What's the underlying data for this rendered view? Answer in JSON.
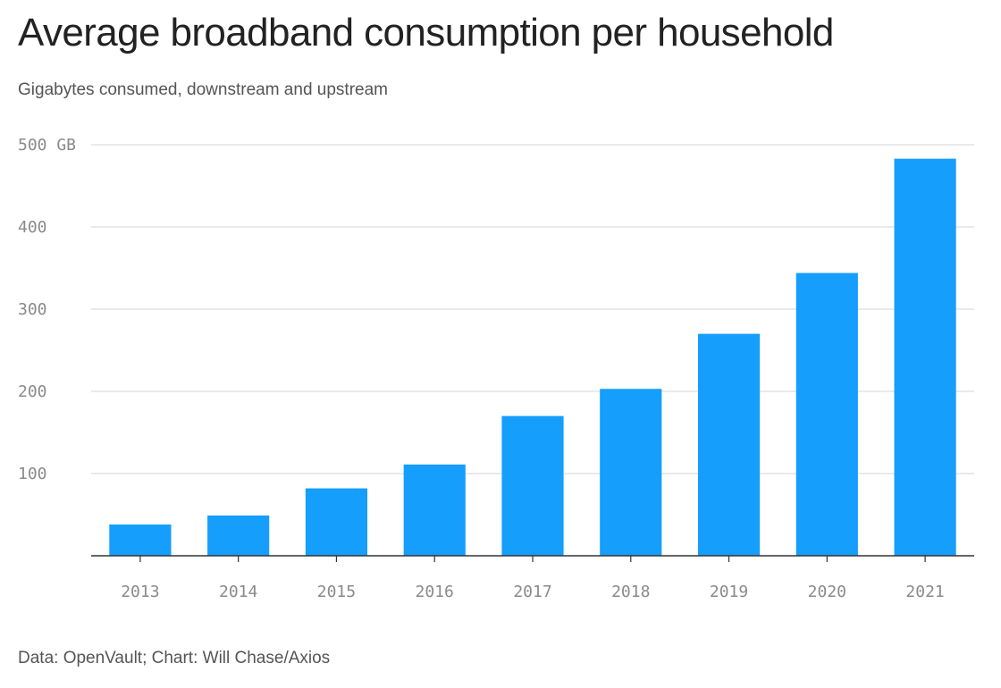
{
  "chart_data": {
    "type": "bar",
    "title": "Average broadband consumption per household",
    "subtitle": "Gigabytes consumed, downstream and upstream",
    "xlabel": "",
    "ylabel": "",
    "categories": [
      "2013",
      "2014",
      "2015",
      "2016",
      "2017",
      "2018",
      "2019",
      "2020",
      "2021"
    ],
    "values": [
      38,
      49,
      82,
      111,
      170,
      203,
      270,
      344,
      483
    ],
    "ylim": [
      0,
      500
    ],
    "y_ticks": [
      {
        "value": 100,
        "label": "100"
      },
      {
        "value": 200,
        "label": "200"
      },
      {
        "value": 300,
        "label": "300"
      },
      {
        "value": 400,
        "label": "400"
      },
      {
        "value": 500,
        "label": "500 GB"
      }
    ],
    "grid": true,
    "legend": "none",
    "bar_color": "#159efc",
    "source": "Data: OpenVault; Chart: Will Chase/Axios"
  }
}
